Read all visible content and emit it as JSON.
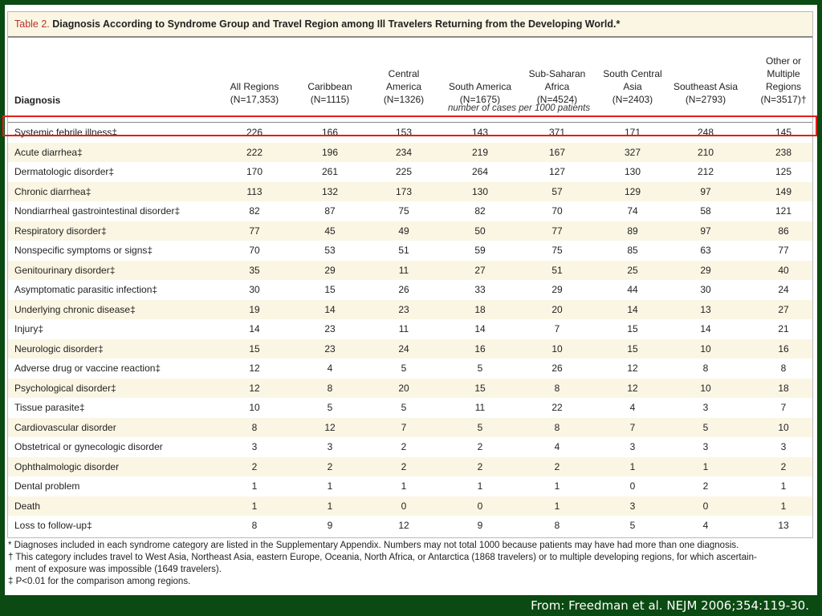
{
  "table": {
    "number": "Table 2.",
    "title": "Diagnosis According to Syndrome Group and Travel Region among Ill Travelers Returning from the Developing World.*",
    "diagnosis_header": "Diagnosis",
    "columns": [
      "All Regions\n(N=17,353)",
      "Caribbean\n(N=1115)",
      "Central\nAmerica\n(N=1326)",
      "South America\n(N=1675)",
      "Sub-Saharan\nAfrica\n(N=4524)",
      "South Central\nAsia\n(N=2403)",
      "Southeast Asia\n(N=2793)",
      "Other or\nMultiple\nRegions\n(N=3517)†"
    ],
    "units": "number of cases per 1000 patients",
    "rows": [
      {
        "label": "Systemic febrile illness‡",
        "values": [
          "226",
          "166",
          "153",
          "143",
          "371",
          "171",
          "248",
          "145"
        ]
      },
      {
        "label": "Acute diarrhea‡",
        "values": [
          "222",
          "196",
          "234",
          "219",
          "167",
          "327",
          "210",
          "238"
        ]
      },
      {
        "label": "Dermatologic disorder‡",
        "values": [
          "170",
          "261",
          "225",
          "264",
          "127",
          "130",
          "212",
          "125"
        ]
      },
      {
        "label": "Chronic diarrhea‡",
        "values": [
          "113",
          "132",
          "173",
          "130",
          "57",
          "129",
          "97",
          "149"
        ]
      },
      {
        "label": "Nondiarrheal gastrointestinal disorder‡",
        "values": [
          "82",
          "87",
          "75",
          "82",
          "70",
          "74",
          "58",
          "121"
        ]
      },
      {
        "label": "Respiratory disorder‡",
        "values": [
          "77",
          "45",
          "49",
          "50",
          "77",
          "89",
          "97",
          "86"
        ]
      },
      {
        "label": "Nonspecific symptoms or signs‡",
        "values": [
          "70",
          "53",
          "51",
          "59",
          "75",
          "85",
          "63",
          "77"
        ]
      },
      {
        "label": "Genitourinary disorder‡",
        "values": [
          "35",
          "29",
          "11",
          "27",
          "51",
          "25",
          "29",
          "40"
        ]
      },
      {
        "label": "Asymptomatic parasitic infection‡",
        "values": [
          "30",
          "15",
          "26",
          "33",
          "29",
          "44",
          "30",
          "24"
        ]
      },
      {
        "label": "Underlying chronic disease‡",
        "values": [
          "19",
          "14",
          "23",
          "18",
          "20",
          "14",
          "13",
          "27"
        ]
      },
      {
        "label": "Injury‡",
        "values": [
          "14",
          "23",
          "11",
          "14",
          "7",
          "15",
          "14",
          "21"
        ]
      },
      {
        "label": "Neurologic disorder‡",
        "values": [
          "15",
          "23",
          "24",
          "16",
          "10",
          "15",
          "10",
          "16"
        ]
      },
      {
        "label": "Adverse drug or vaccine reaction‡",
        "values": [
          "12",
          "4",
          "5",
          "5",
          "26",
          "12",
          "8",
          "8"
        ]
      },
      {
        "label": "Psychological disorder‡",
        "values": [
          "12",
          "8",
          "20",
          "15",
          "8",
          "12",
          "10",
          "18"
        ]
      },
      {
        "label": "Tissue parasite‡",
        "values": [
          "10",
          "5",
          "5",
          "11",
          "22",
          "4",
          "3",
          "7"
        ]
      },
      {
        "label": "Cardiovascular disorder",
        "values": [
          "8",
          "12",
          "7",
          "5",
          "8",
          "7",
          "5",
          "10"
        ]
      },
      {
        "label": "Obstetrical or gynecologic disorder",
        "values": [
          "3",
          "3",
          "2",
          "2",
          "4",
          "3",
          "3",
          "3"
        ]
      },
      {
        "label": "Ophthalmologic disorder",
        "values": [
          "2",
          "2",
          "2",
          "2",
          "2",
          "1",
          "1",
          "2"
        ]
      },
      {
        "label": "Dental problem",
        "values": [
          "1",
          "1",
          "1",
          "1",
          "1",
          "0",
          "2",
          "1"
        ]
      },
      {
        "label": "Death",
        "values": [
          "1",
          "1",
          "0",
          "0",
          "1",
          "3",
          "0",
          "1"
        ]
      },
      {
        "label": "Loss to follow-up‡",
        "values": [
          "8",
          "9",
          "12",
          "9",
          "8",
          "5",
          "4",
          "13"
        ]
      }
    ],
    "highlighted_row_index": 0
  },
  "footnotes": [
    "* Diagnoses included in each syndrome category are listed in the Supplementary Appendix. Numbers may not total 1000 because patients may have had more than one diagnosis.",
    "† This category includes travel to West Asia, Northeast Asia, eastern Europe, Oceania, North Africa, or Antarctica (1868 travelers) or to multiple developing regions, for which ascertain-",
    "ment of exposure was impossible (1649 travelers).",
    "‡ P<0.01 for the comparison among regions."
  ],
  "citation": "From: Freedman et al. NEJM 2006;354:119-30.",
  "colors": {
    "slide_background": "#0b4a12",
    "stripe": "#fbf6e3",
    "table_number": "#b5322a",
    "highlight": "#e0201a"
  }
}
